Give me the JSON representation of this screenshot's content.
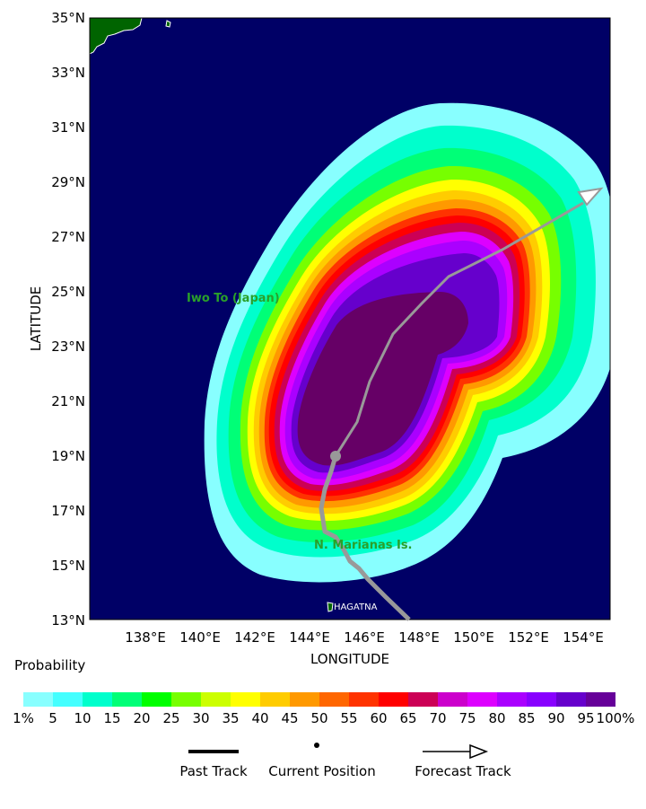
{
  "map": {
    "lat_labels": [
      "35°N",
      "33°N",
      "31°N",
      "29°N",
      "27°N",
      "25°N",
      "23°N",
      "21°N",
      "19°N",
      "17°N",
      "15°N",
      "13°N"
    ],
    "lon_labels": [
      "138°E",
      "140°E",
      "142°E",
      "144°E",
      "146°E",
      "148°E",
      "150°E",
      "152°E",
      "154°E"
    ],
    "ylabel": "LATITUDE",
    "xlabel": "LONGITUDE",
    "places": {
      "iwo_to": "Iwo To (Japan)",
      "marianas": "N. Marianas Is.",
      "hagatna": "HAGATNA"
    },
    "colors": {
      "ocean": "#000066",
      "land": "#006400",
      "track": "#999999"
    }
  },
  "legend": {
    "title": "Probability",
    "ticks": [
      "1%",
      "5",
      "10",
      "15",
      "20",
      "25",
      "30",
      "35",
      "40",
      "45",
      "50",
      "55",
      "60",
      "65",
      "70",
      "75",
      "80",
      "85",
      "90",
      "95",
      "100%"
    ],
    "colors": [
      "#88ffff",
      "#44ffff",
      "#00ffcc",
      "#00ff77",
      "#00ff00",
      "#77ff00",
      "#ccff00",
      "#ffff00",
      "#ffcc00",
      "#ff9900",
      "#ff6600",
      "#ff3300",
      "#ff0000",
      "#cc0055",
      "#cc00cc",
      "#dd00ff",
      "#aa00ff",
      "#8800ff",
      "#6600cc",
      "#660099"
    ],
    "past_track": "Past Track",
    "current_position": "Current Position",
    "forecast_track": "Forecast Track"
  }
}
